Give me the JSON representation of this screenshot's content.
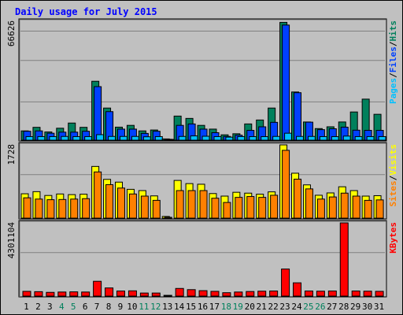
{
  "chart_data": {
    "type": "bar",
    "title": "Daily usage for July 2015",
    "categories": [
      "1",
      "2",
      "3",
      "4",
      "5",
      "6",
      "7",
      "8",
      "9",
      "10",
      "11",
      "12",
      "13",
      "14",
      "15",
      "16",
      "17",
      "18",
      "19",
      "20",
      "21",
      "22",
      "23",
      "24",
      "25",
      "26",
      "27",
      "28",
      "29",
      "30",
      "31"
    ],
    "weekend_days": [
      "4",
      "5",
      "11",
      "12",
      "18",
      "19",
      "25",
      "26"
    ],
    "colors": {
      "hits": "#00805c",
      "files": "#0040ff",
      "pages": "#00c0ff",
      "visits": "#ffff00",
      "sites": "#ff8000",
      "kbytes": "#ff0000",
      "weekend_label": "#00805c",
      "weekday_label": "#000000",
      "title": "#0000ff",
      "background": "#c0c0c0"
    },
    "panels": [
      {
        "id": "requests",
        "ymax": 66626,
        "ymax_label": "66626",
        "legend": [
          "Pages",
          "/",
          "Files",
          "/",
          "Hits"
        ],
        "legend_colors": [
          "#00c0ff",
          "#000000",
          "#0040ff",
          "#000000",
          "#00805c"
        ],
        "series": [
          {
            "name": "Hits",
            "values": [
              5200,
              7200,
              4600,
              6700,
              9600,
              7200,
              33000,
              18000,
              7300,
              8300,
              5200,
              5700,
              700,
              13500,
              12200,
              8300,
              6200,
              3000,
              3600,
              9100,
              11300,
              18000,
              66000,
              27000,
              10200,
              6500,
              7500,
              10200,
              15800,
              23000,
              14500
            ]
          },
          {
            "name": "Files",
            "values": [
              5000,
              5200,
              3900,
              4500,
              4500,
              5000,
              30000,
              16000,
              6200,
              6200,
              3800,
              5000,
              500,
              8300,
              9100,
              6200,
              4200,
              2100,
              2800,
              5500,
              7500,
              10000,
              64500,
              26600,
              10100,
              5900,
              6400,
              7300,
              5600,
              5500,
              5500
            ]
          },
          {
            "name": "Pages",
            "values": [
              2000,
              2000,
              2000,
              2100,
              2000,
              2000,
              3100,
              2100,
              2100,
              2100,
              1900,
              2000,
              200,
              2100,
              2400,
              2200,
              2000,
              1700,
              2000,
              2000,
              2000,
              2100,
              3900,
              2100,
              2100,
              2000,
              2000,
              2300,
              2000,
              2000,
              2000
            ]
          }
        ]
      },
      {
        "id": "visitors",
        "ymax": 1728,
        "ymax_label": "1728",
        "legend": [
          "Sites",
          "/",
          "Visits"
        ],
        "legend_colors": [
          "#ff8000",
          "#000000",
          "#ffff00"
        ],
        "series": [
          {
            "name": "Visits",
            "values": [
              575,
              625,
              535,
              570,
              555,
              565,
              1220,
              915,
              850,
              680,
              650,
              525,
              40,
              890,
              815,
              800,
              580,
              520,
              610,
              590,
              565,
              620,
              1728,
              1060,
              785,
              540,
              595,
              740,
              650,
              520,
              530
            ]
          },
          {
            "name": "Sites",
            "values": [
              480,
              450,
              435,
              440,
              450,
              460,
              1090,
              790,
              710,
              570,
              520,
              420,
              20,
              650,
              650,
              650,
              470,
              370,
              490,
              510,
              490,
              540,
              1600,
              920,
              690,
              450,
              500,
              590,
              520,
              420,
              430
            ]
          }
        ]
      },
      {
        "id": "kbytes",
        "ymax": 4301104,
        "ymax_label": "4301104",
        "legend": [
          "KBytes"
        ],
        "legend_colors": [
          "#ff0000"
        ],
        "series": [
          {
            "name": "KBytes",
            "values": [
              280000,
              260000,
              220000,
              240000,
              250000,
              240000,
              870000,
              480000,
              300000,
              310000,
              180000,
              180000,
              20000,
              450000,
              380000,
              320000,
              280000,
              200000,
              240000,
              270000,
              290000,
              300000,
              1590000,
              780000,
              300000,
              290000,
              300000,
              4300000,
              300000,
              290000,
              280000
            ]
          }
        ]
      }
    ]
  }
}
